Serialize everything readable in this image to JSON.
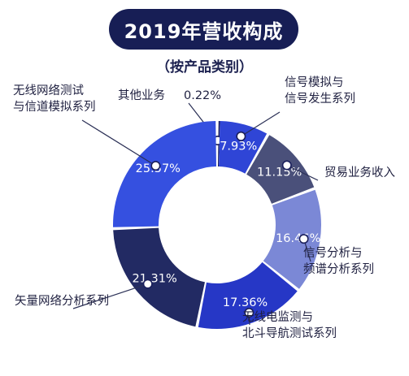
{
  "chart_data": {
    "type": "pie",
    "title": "2019年营收构成",
    "subtitle": "（按产品类别）",
    "categories": [
      "其他业务",
      "信号模拟与信号发生系列",
      "贸易业务收入",
      "信号分析与频谱分析系列",
      "无线电监测与北斗导航测试系列",
      "矢量网络分析系列",
      "无线网络测试与信道模拟系列"
    ],
    "values": [
      0.22,
      7.93,
      11.15,
      16.46,
      17.36,
      21.31,
      25.57
    ],
    "value_labels": [
      "0.22%",
      "7.93%",
      "11.15%",
      "16.46%",
      "17.36%",
      "21.31%",
      "25.57%"
    ],
    "label_lines": [
      [
        "其他业务"
      ],
      [
        "信号模拟与",
        "信号发生系列"
      ],
      [
        "贸易业务收入"
      ],
      [
        "信号分析与",
        "频谱分析系列"
      ],
      [
        "无线电监测与",
        "北斗导航测试系列"
      ],
      [
        "矢量网络分析系列"
      ],
      [
        "无线网络测试",
        "与信道模拟系列"
      ]
    ],
    "colors": [
      "#1a1f5c",
      "#2f45d6",
      "#4a507a",
      "#7b88d6",
      "#2637c6",
      "#222a63",
      "#3550e0"
    ],
    "donut": true,
    "legend": "none"
  }
}
